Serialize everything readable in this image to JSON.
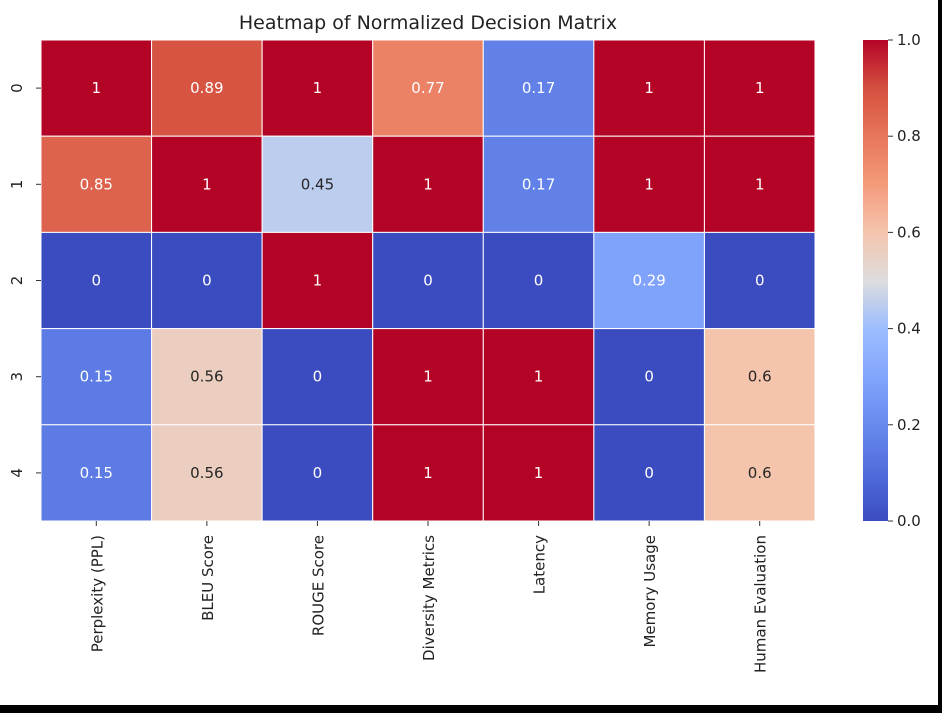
{
  "chart_data": {
    "type": "heatmap",
    "title": "Heatmap of Normalized Decision Matrix",
    "xlabel": "",
    "ylabel": "",
    "columns": [
      "Perplexity (PPL)",
      "BLEU Score",
      "ROUGE Score",
      "Diversity Metrics",
      "Latency",
      "Memory Usage",
      "Human Evaluation"
    ],
    "rows": [
      "0",
      "1",
      "2",
      "3",
      "4"
    ],
    "values": [
      [
        1,
        0.89,
        1,
        0.77,
        0.17,
        1,
        1
      ],
      [
        0.85,
        1,
        0.45,
        1,
        0.17,
        1,
        1
      ],
      [
        0,
        0,
        1,
        0,
        0,
        0.29,
        0
      ],
      [
        0.15,
        0.56,
        0,
        1,
        1,
        0,
        0.6
      ],
      [
        0.15,
        0.56,
        0,
        1,
        1,
        0,
        0.6
      ]
    ],
    "cell_labels": [
      [
        "1",
        "0.89",
        "1",
        "0.77",
        "0.17",
        "1",
        "1"
      ],
      [
        "0.85",
        "1",
        "0.45",
        "1",
        "0.17",
        "1",
        "1"
      ],
      [
        "0",
        "0",
        "1",
        "0",
        "0",
        "0.29",
        "0"
      ],
      [
        "0.15",
        "0.56",
        "0",
        "1",
        "1",
        "0",
        "0.6"
      ],
      [
        "0.15",
        "0.56",
        "0",
        "1",
        "1",
        "0",
        "0.6"
      ]
    ],
    "colorscale": "coolwarm",
    "vmin": 0,
    "vmax": 1,
    "colorbar_ticks": [
      "0.0",
      "0.2",
      "0.4",
      "0.6",
      "0.8",
      "1.0"
    ],
    "colorbar_tick_values": [
      0,
      0.2,
      0.4,
      0.6,
      0.8,
      1.0
    ],
    "grid": false,
    "colorbar_placement": "right"
  }
}
